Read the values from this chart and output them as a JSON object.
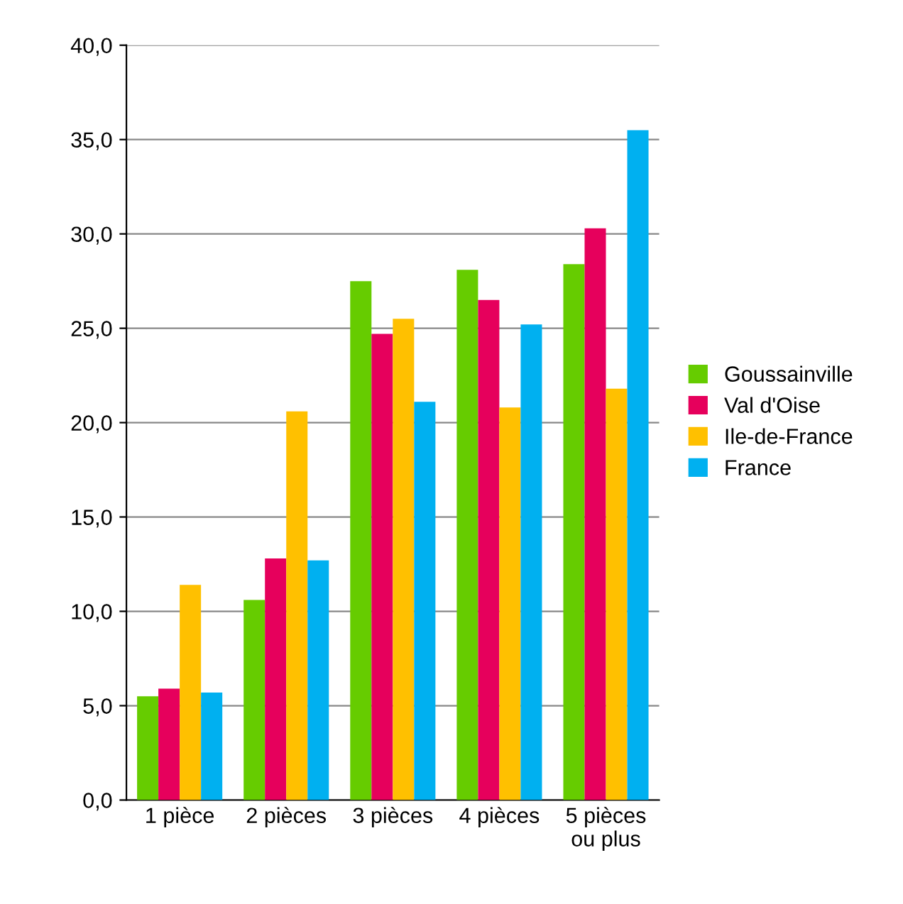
{
  "chart_data": {
    "type": "bar",
    "categories": [
      "1 pièce",
      "2 pièces",
      "3 pièces",
      "4 pièces",
      "5 pièces\nou plus"
    ],
    "series": [
      {
        "name": "Goussainville",
        "color": "#66cc00",
        "values": [
          5.5,
          10.6,
          27.5,
          28.1,
          28.4
        ]
      },
      {
        "name": "Val d'Oise",
        "color": "#e6005c",
        "values": [
          5.9,
          12.8,
          24.7,
          26.5,
          30.3
        ]
      },
      {
        "name": "Ile-de-France",
        "color": "#ffc000",
        "values": [
          11.4,
          20.6,
          25.5,
          20.8,
          21.8
        ]
      },
      {
        "name": "France",
        "color": "#00b0f0",
        "values": [
          5.7,
          12.7,
          21.1,
          25.2,
          35.5
        ]
      }
    ],
    "ylim": [
      0,
      40
    ],
    "yticks": [
      {
        "value": 0,
        "label": "0,0"
      },
      {
        "value": 5,
        "label": "5,0"
      },
      {
        "value": 10,
        "label": "10,0"
      },
      {
        "value": 15,
        "label": "15,0"
      },
      {
        "value": 20,
        "label": "20,0"
      },
      {
        "value": 25,
        "label": "25,0"
      },
      {
        "value": 30,
        "label": "30,0"
      },
      {
        "value": 35,
        "label": "35,0"
      },
      {
        "value": 40,
        "label": "40,0"
      }
    ],
    "grid": "y",
    "legend": "right"
  }
}
